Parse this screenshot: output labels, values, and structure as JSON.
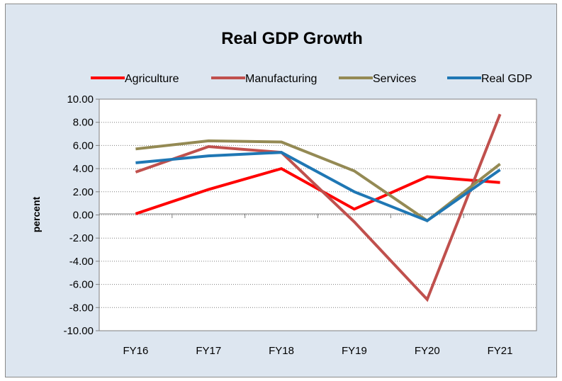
{
  "chart_data": {
    "type": "line",
    "title": "Real GDP Growth",
    "xlabel": "",
    "ylabel": "percent",
    "categories": [
      "FY16",
      "FY17",
      "FY18",
      "FY19",
      "FY20",
      "FY21"
    ],
    "ylim": [
      -10,
      10
    ],
    "y_ticks": [
      "10.00",
      "8.00",
      "6.00",
      "4.00",
      "2.00",
      "0.00",
      "-2.00",
      "-4.00",
      "-6.00",
      "-8.00",
      "-10.00"
    ],
    "grid": "horizontal dotted",
    "legend_position": "top",
    "series": [
      {
        "name": "Agriculture",
        "color": "#ff0000",
        "values": [
          0.1,
          2.2,
          4.0,
          0.5,
          3.3,
          2.8
        ]
      },
      {
        "name": "Manufacturing",
        "color": "#c0504d",
        "values": [
          3.7,
          5.9,
          5.4,
          -0.6,
          -7.3,
          8.7
        ]
      },
      {
        "name": "Services",
        "color": "#948a54",
        "values": [
          5.7,
          6.4,
          6.3,
          3.8,
          -0.5,
          4.4
        ]
      },
      {
        "name": "Real GDP",
        "color": "#1f77b4",
        "values": [
          4.5,
          5.1,
          5.4,
          2.0,
          -0.5,
          3.9
        ]
      }
    ]
  }
}
